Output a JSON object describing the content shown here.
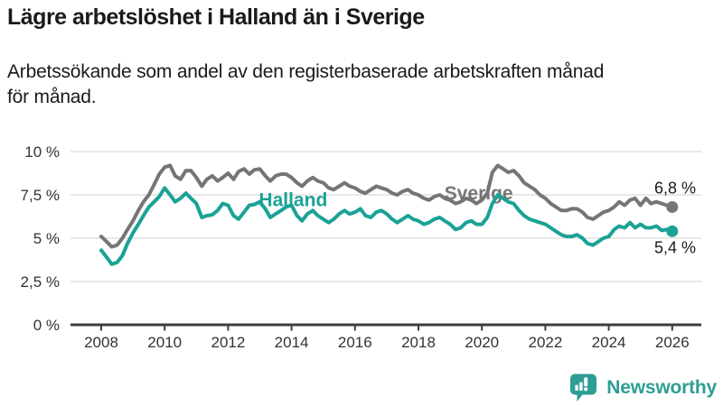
{
  "chart_data": {
    "type": "line",
    "title": "Lägre arbetslöshet i Halland än i Sverige",
    "subtitle": "Arbetssökande som andel av den registerbaserade arbetskraften månad för månad.",
    "subtitle_lines": [
      "Arbetssökande som andel av den registerbaserade arbetskraften månad",
      "för månad."
    ],
    "grid": true,
    "legend": "inline-labels",
    "decimal_style": "comma",
    "x_axis": {
      "start": 2008,
      "end": 2026.2,
      "ticks": [
        2008,
        2010,
        2012,
        2014,
        2016,
        2018,
        2020,
        2022,
        2024,
        2026
      ]
    },
    "y_axis": {
      "unit": "%",
      "range": [
        0,
        10
      ],
      "ticks": [
        {
          "value": 0,
          "label": "0 %"
        },
        {
          "value": 2.5,
          "label": "2,5 %"
        },
        {
          "value": 5,
          "label": "5 %"
        },
        {
          "value": 7.5,
          "label": "7,5 %"
        },
        {
          "value": 10,
          "label": "10 %"
        }
      ]
    },
    "colors": {
      "grid": "#d9d9d9",
      "axis": "#3d3d3d",
      "axis_text": "#333333",
      "value_text": "#1a1a1a"
    },
    "series": [
      {
        "name": "Sverige",
        "color": "#757575",
        "end_label": "6,8 %",
        "end_label_position": "above",
        "label_pos": {
          "year": 2019.9,
          "value": 7.25
        },
        "points": [
          [
            2008.0,
            5.1
          ],
          [
            2008.17,
            4.8
          ],
          [
            2008.33,
            4.5
          ],
          [
            2008.5,
            4.6
          ],
          [
            2008.67,
            5.0
          ],
          [
            2008.83,
            5.5
          ],
          [
            2009.0,
            6.0
          ],
          [
            2009.17,
            6.6
          ],
          [
            2009.33,
            7.1
          ],
          [
            2009.5,
            7.5
          ],
          [
            2009.67,
            8.1
          ],
          [
            2009.83,
            8.7
          ],
          [
            2010.0,
            9.1
          ],
          [
            2010.17,
            9.2
          ],
          [
            2010.33,
            8.6
          ],
          [
            2010.5,
            8.4
          ],
          [
            2010.67,
            8.9
          ],
          [
            2010.83,
            8.9
          ],
          [
            2011.0,
            8.5
          ],
          [
            2011.17,
            8.0
          ],
          [
            2011.33,
            8.4
          ],
          [
            2011.5,
            8.6
          ],
          [
            2011.67,
            8.3
          ],
          [
            2011.83,
            8.5
          ],
          [
            2012.0,
            8.75
          ],
          [
            2012.17,
            8.4
          ],
          [
            2012.33,
            8.85
          ],
          [
            2012.5,
            9.0
          ],
          [
            2012.67,
            8.7
          ],
          [
            2012.83,
            8.95
          ],
          [
            2013.0,
            9.0
          ],
          [
            2013.17,
            8.6
          ],
          [
            2013.33,
            8.3
          ],
          [
            2013.5,
            8.6
          ],
          [
            2013.67,
            8.7
          ],
          [
            2013.83,
            8.7
          ],
          [
            2014.0,
            8.5
          ],
          [
            2014.17,
            8.2
          ],
          [
            2014.33,
            8.0
          ],
          [
            2014.5,
            8.3
          ],
          [
            2014.67,
            8.5
          ],
          [
            2014.83,
            8.3
          ],
          [
            2015.0,
            8.2
          ],
          [
            2015.17,
            7.9
          ],
          [
            2015.33,
            7.8
          ],
          [
            2015.5,
            8.0
          ],
          [
            2015.67,
            8.2
          ],
          [
            2015.83,
            8.0
          ],
          [
            2016.0,
            7.9
          ],
          [
            2016.17,
            7.7
          ],
          [
            2016.33,
            7.6
          ],
          [
            2016.5,
            7.8
          ],
          [
            2016.67,
            8.0
          ],
          [
            2016.83,
            7.9
          ],
          [
            2017.0,
            7.8
          ],
          [
            2017.17,
            7.6
          ],
          [
            2017.33,
            7.5
          ],
          [
            2017.5,
            7.7
          ],
          [
            2017.67,
            7.8
          ],
          [
            2017.83,
            7.6
          ],
          [
            2018.0,
            7.5
          ],
          [
            2018.17,
            7.3
          ],
          [
            2018.33,
            7.2
          ],
          [
            2018.5,
            7.4
          ],
          [
            2018.67,
            7.5
          ],
          [
            2018.83,
            7.3
          ],
          [
            2019.0,
            7.2
          ],
          [
            2019.17,
            7.0
          ],
          [
            2019.33,
            7.1
          ],
          [
            2019.5,
            7.3
          ],
          [
            2019.67,
            7.2
          ],
          [
            2019.83,
            7.0
          ],
          [
            2020.0,
            7.2
          ],
          [
            2020.17,
            7.6
          ],
          [
            2020.33,
            8.8
          ],
          [
            2020.5,
            9.2
          ],
          [
            2020.67,
            9.0
          ],
          [
            2020.83,
            8.8
          ],
          [
            2021.0,
            8.9
          ],
          [
            2021.17,
            8.6
          ],
          [
            2021.33,
            8.2
          ],
          [
            2021.5,
            8.0
          ],
          [
            2021.67,
            7.8
          ],
          [
            2021.83,
            7.5
          ],
          [
            2022.0,
            7.3
          ],
          [
            2022.17,
            7.0
          ],
          [
            2022.33,
            6.8
          ],
          [
            2022.5,
            6.6
          ],
          [
            2022.67,
            6.6
          ],
          [
            2022.83,
            6.7
          ],
          [
            2023.0,
            6.7
          ],
          [
            2023.17,
            6.5
          ],
          [
            2023.33,
            6.2
          ],
          [
            2023.5,
            6.1
          ],
          [
            2023.67,
            6.3
          ],
          [
            2023.83,
            6.5
          ],
          [
            2024.0,
            6.6
          ],
          [
            2024.17,
            6.8
          ],
          [
            2024.33,
            7.1
          ],
          [
            2024.5,
            6.9
          ],
          [
            2024.67,
            7.2
          ],
          [
            2024.83,
            7.3
          ],
          [
            2025.0,
            6.9
          ],
          [
            2025.17,
            7.3
          ],
          [
            2025.33,
            7.0
          ],
          [
            2025.5,
            7.1
          ],
          [
            2025.67,
            7.0
          ],
          [
            2025.83,
            6.9
          ],
          [
            2026.0,
            6.8
          ]
        ]
      },
      {
        "name": "Halland",
        "color": "#1aa296",
        "end_label": "5,4 %",
        "end_label_position": "below",
        "label_pos": {
          "year": 2014.05,
          "value": 6.85
        },
        "points": [
          [
            2008.0,
            4.3
          ],
          [
            2008.17,
            3.9
          ],
          [
            2008.33,
            3.5
          ],
          [
            2008.5,
            3.6
          ],
          [
            2008.67,
            4.0
          ],
          [
            2008.83,
            4.7
          ],
          [
            2009.0,
            5.3
          ],
          [
            2009.17,
            5.8
          ],
          [
            2009.33,
            6.3
          ],
          [
            2009.5,
            6.8
          ],
          [
            2009.67,
            7.1
          ],
          [
            2009.83,
            7.4
          ],
          [
            2010.0,
            7.9
          ],
          [
            2010.17,
            7.5
          ],
          [
            2010.33,
            7.1
          ],
          [
            2010.5,
            7.3
          ],
          [
            2010.67,
            7.6
          ],
          [
            2010.83,
            7.3
          ],
          [
            2011.0,
            7.0
          ],
          [
            2011.17,
            6.2
          ],
          [
            2011.33,
            6.3
          ],
          [
            2011.5,
            6.35
          ],
          [
            2011.67,
            6.6
          ],
          [
            2011.83,
            7.0
          ],
          [
            2012.0,
            6.9
          ],
          [
            2012.17,
            6.3
          ],
          [
            2012.33,
            6.1
          ],
          [
            2012.5,
            6.5
          ],
          [
            2012.67,
            6.9
          ],
          [
            2012.83,
            6.95
          ],
          [
            2013.0,
            7.1
          ],
          [
            2013.17,
            6.7
          ],
          [
            2013.33,
            6.2
          ],
          [
            2013.5,
            6.4
          ],
          [
            2013.67,
            6.6
          ],
          [
            2013.83,
            6.8
          ],
          [
            2014.0,
            6.9
          ],
          [
            2014.17,
            6.3
          ],
          [
            2014.33,
            6.0
          ],
          [
            2014.5,
            6.4
          ],
          [
            2014.67,
            6.6
          ],
          [
            2014.83,
            6.3
          ],
          [
            2015.0,
            6.1
          ],
          [
            2015.17,
            5.9
          ],
          [
            2015.33,
            6.1
          ],
          [
            2015.5,
            6.4
          ],
          [
            2015.67,
            6.6
          ],
          [
            2015.83,
            6.4
          ],
          [
            2016.0,
            6.5
          ],
          [
            2016.17,
            6.7
          ],
          [
            2016.33,
            6.3
          ],
          [
            2016.5,
            6.2
          ],
          [
            2016.67,
            6.5
          ],
          [
            2016.83,
            6.6
          ],
          [
            2017.0,
            6.4
          ],
          [
            2017.17,
            6.1
          ],
          [
            2017.33,
            5.9
          ],
          [
            2017.5,
            6.1
          ],
          [
            2017.67,
            6.3
          ],
          [
            2017.83,
            6.1
          ],
          [
            2018.0,
            6.0
          ],
          [
            2018.17,
            5.8
          ],
          [
            2018.33,
            5.9
          ],
          [
            2018.5,
            6.1
          ],
          [
            2018.67,
            6.2
          ],
          [
            2018.83,
            6.0
          ],
          [
            2019.0,
            5.8
          ],
          [
            2019.17,
            5.5
          ],
          [
            2019.33,
            5.6
          ],
          [
            2019.5,
            5.9
          ],
          [
            2019.67,
            6.0
          ],
          [
            2019.83,
            5.8
          ],
          [
            2020.0,
            5.8
          ],
          [
            2020.17,
            6.2
          ],
          [
            2020.33,
            7.0
          ],
          [
            2020.5,
            7.5
          ],
          [
            2020.67,
            7.3
          ],
          [
            2020.83,
            7.1
          ],
          [
            2021.0,
            7.0
          ],
          [
            2021.17,
            6.6
          ],
          [
            2021.33,
            6.3
          ],
          [
            2021.5,
            6.1
          ],
          [
            2021.67,
            6.0
          ],
          [
            2021.83,
            5.9
          ],
          [
            2022.0,
            5.8
          ],
          [
            2022.17,
            5.6
          ],
          [
            2022.33,
            5.4
          ],
          [
            2022.5,
            5.2
          ],
          [
            2022.67,
            5.1
          ],
          [
            2022.83,
            5.1
          ],
          [
            2023.0,
            5.2
          ],
          [
            2023.17,
            5.0
          ],
          [
            2023.33,
            4.7
          ],
          [
            2023.5,
            4.6
          ],
          [
            2023.67,
            4.8
          ],
          [
            2023.83,
            5.0
          ],
          [
            2024.0,
            5.1
          ],
          [
            2024.17,
            5.5
          ],
          [
            2024.33,
            5.7
          ],
          [
            2024.5,
            5.6
          ],
          [
            2024.67,
            5.9
          ],
          [
            2024.83,
            5.6
          ],
          [
            2025.0,
            5.8
          ],
          [
            2025.17,
            5.6
          ],
          [
            2025.33,
            5.6
          ],
          [
            2025.5,
            5.7
          ],
          [
            2025.67,
            5.45
          ],
          [
            2025.83,
            5.5
          ],
          [
            2026.0,
            5.4
          ]
        ]
      }
    ]
  },
  "footer": {
    "brand": "Newsworthy",
    "color": "#2e9e95"
  }
}
